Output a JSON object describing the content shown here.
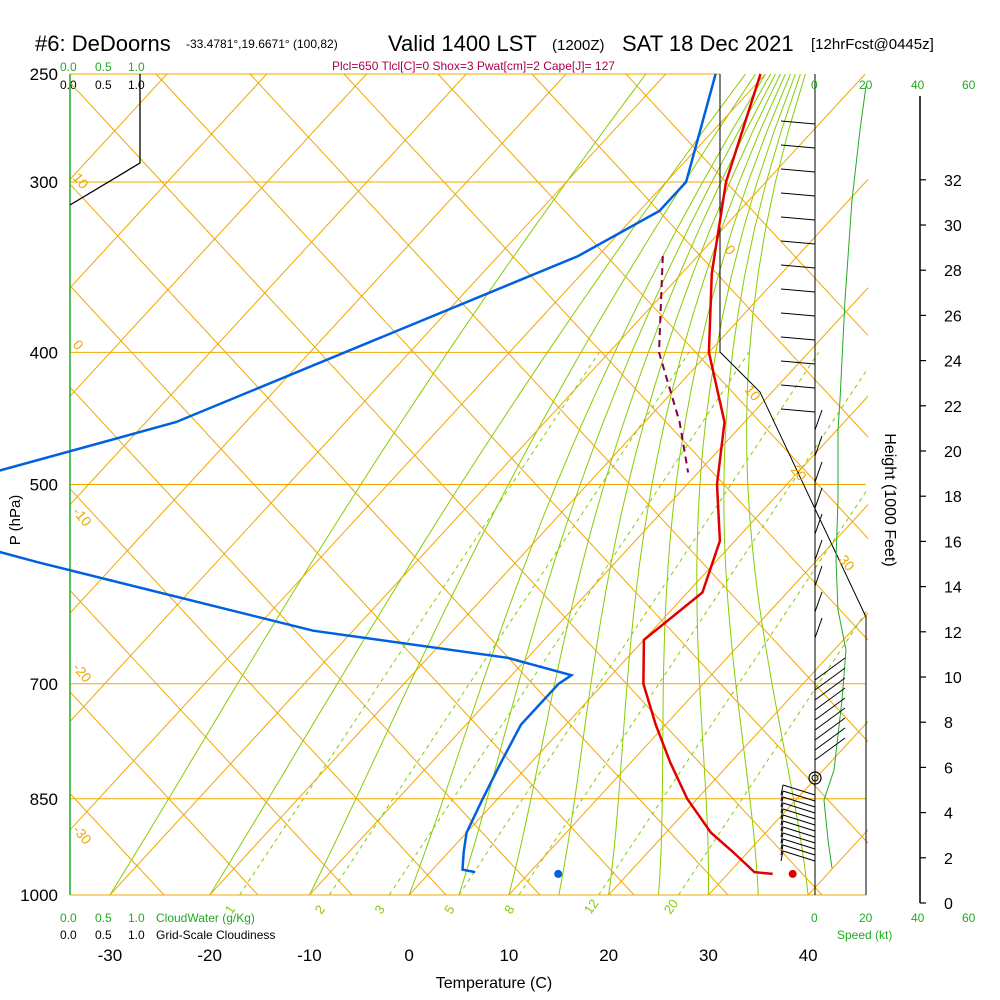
{
  "header": {
    "station": "#6: DeDoorns",
    "coords": "-33.4781°,19.6671° (100,82)",
    "valid": "Valid 1400 LST",
    "zulu": "(1200Z)",
    "date": "SAT 18 Dec 2021",
    "forecast": "[12hrFcst@0445z]",
    "indices": "Plcl=650 Tlcl[C]=0 Shox=3 Pwat[cm]=2 Cape[J]= 127"
  },
  "colors": {
    "temperature": "#e00000",
    "dewpoint": "#0060e0",
    "parcel": "#800040",
    "isobar": "#f0a800",
    "isotherm": "#f0a800",
    "adiabat": "#88cc00",
    "mixing_ratio": "#88cc00",
    "cloudwater": "#22aa22",
    "indices": "#aa0050"
  },
  "cloud_scales": {
    "top_green": [
      "0.0",
      "0.5",
      "1.0"
    ],
    "top_black": [
      "0.0",
      "0.5",
      "1.0"
    ],
    "bottom_green": [
      "0.0",
      "0.5",
      "1.0"
    ],
    "bottom_black": [
      "0.0",
      "0.5",
      "1.0"
    ],
    "cloudwater_label": "CloudWater (g/Kg)",
    "cloudiness_label": "Grid-Scale Cloudiness"
  },
  "wind_panel": {
    "speed_ticks": [
      "0",
      "20",
      "40",
      "60"
    ],
    "speed_label": "Speed (kt)"
  },
  "chart_data": {
    "type": "skew-t",
    "xlabel": "Temperature (C)",
    "ylabel": "P (hPa)",
    "y2label": "Height (1000 Feet)",
    "x_ticks": [
      -30,
      -20,
      -10,
      0,
      10,
      20,
      30,
      40
    ],
    "xlim": [
      -34,
      46
    ],
    "ylim_hpa": [
      1000,
      250
    ],
    "pressure_ticks": [
      250,
      300,
      400,
      500,
      700,
      850,
      1000
    ],
    "height_ticks_kft": [
      0,
      2,
      4,
      6,
      8,
      10,
      12,
      14,
      16,
      18,
      20,
      22,
      24,
      26,
      28,
      30,
      32
    ],
    "isotherm_labels": [
      "10",
      "0",
      "-10",
      "-20",
      "-30",
      "0",
      "10",
      "20",
      "30"
    ],
    "mixing_ratio_labels": [
      "1",
      "2",
      "3",
      "5",
      "8",
      "12",
      "20"
    ],
    "temperature": [
      {
        "p": 250,
        "t": -40.5
      },
      {
        "p": 300,
        "t": -34.0
      },
      {
        "p": 350,
        "t": -27.0
      },
      {
        "p": 400,
        "t": -20.0
      },
      {
        "p": 450,
        "t": -12.0
      },
      {
        "p": 500,
        "t": -7.0
      },
      {
        "p": 550,
        "t": -1.5
      },
      {
        "p": 600,
        "t": 1.5
      },
      {
        "p": 650,
        "t": 0.0
      },
      {
        "p": 700,
        "t": 4.0
      },
      {
        "p": 750,
        "t": 9.0
      },
      {
        "p": 800,
        "t": 14.0
      },
      {
        "p": 850,
        "t": 19.0
      },
      {
        "p": 900,
        "t": 24.5
      },
      {
        "p": 930,
        "t": 28.5
      },
      {
        "p": 962,
        "t": 32.5
      },
      {
        "p": 965,
        "t": 34.5
      }
    ],
    "dewpoint": [
      {
        "p": 250,
        "t": -45.0
      },
      {
        "p": 300,
        "t": -38.0
      },
      {
        "p": 315,
        "t": -38.0
      },
      {
        "p": 340,
        "t": -42.0
      },
      {
        "p": 450,
        "t": -67.0
      },
      {
        "p": 500,
        "t": -84.0
      },
      {
        "p": 530,
        "t": -88.0
      },
      {
        "p": 570,
        "t": -68.0
      },
      {
        "p": 640,
        "t": -34.0
      },
      {
        "p": 670,
        "t": -12.0
      },
      {
        "p": 690,
        "t": -4.0
      },
      {
        "p": 700,
        "t": -4.5
      },
      {
        "p": 750,
        "t": -4.5
      },
      {
        "p": 800,
        "t": -3.0
      },
      {
        "p": 850,
        "t": -1.5
      },
      {
        "p": 900,
        "t": 0.0
      },
      {
        "p": 930,
        "t": 1.5
      },
      {
        "p": 958,
        "t": 3.0
      },
      {
        "p": 962,
        "t": 4.5
      }
    ],
    "parcel": [
      {
        "p": 340,
        "t": -33.5
      },
      {
        "p": 400,
        "t": -25.0
      },
      {
        "p": 450,
        "t": -16.5
      },
      {
        "p": 490,
        "t": -11.0
      }
    ],
    "surface": {
      "p": 965,
      "t": 36.5,
      "td": 13.0
    }
  }
}
